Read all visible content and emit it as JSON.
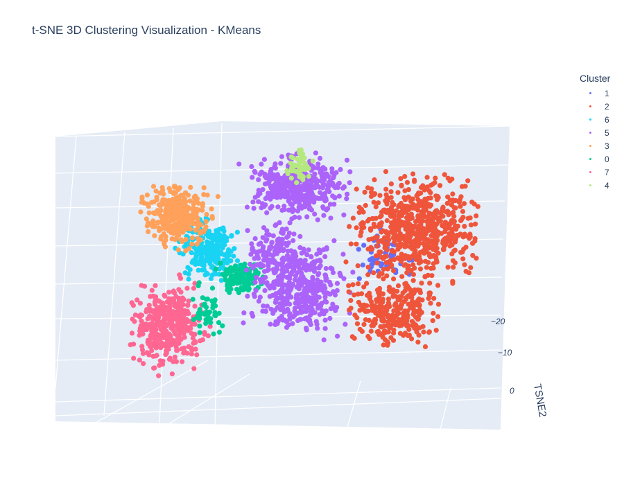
{
  "chart_data": {
    "type": "scatter",
    "projection": "3d",
    "title": "t-SNE 3D Clustering Visualization - KMeans",
    "axes": {
      "visible_axis_title": "TSNE2",
      "visible_axis_ticks": [
        "−20",
        "−10",
        "0"
      ]
    },
    "grid": true,
    "legend": {
      "title": "Cluster",
      "placement": "top-right",
      "entries": [
        "1",
        "2",
        "6",
        "5",
        "3",
        "0",
        "7",
        "4"
      ]
    },
    "series": [
      {
        "name": "1",
        "color": "#636efa"
      },
      {
        "name": "2",
        "color": "#EF553B"
      },
      {
        "name": "6",
        "color": "#19d3f3"
      },
      {
        "name": "5",
        "color": "#ab63fa"
      },
      {
        "name": "3",
        "color": "#FFA15A"
      },
      {
        "name": "0",
        "color": "#00cc96"
      },
      {
        "name": "7",
        "color": "#FF6692"
      },
      {
        "name": "4",
        "color": "#B6E880"
      }
    ]
  }
}
